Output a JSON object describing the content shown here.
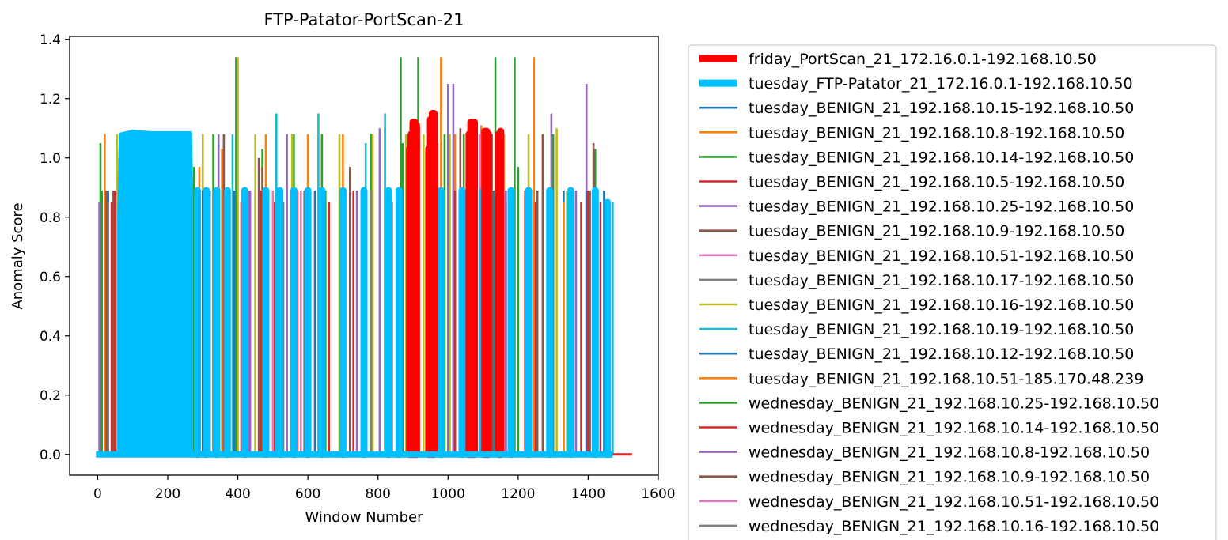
{
  "chart_data": {
    "type": "line",
    "title": "FTP-Patator-PortScan-21",
    "xlabel": "Window Number",
    "ylabel": "Anomaly Score",
    "xlim": [
      -80,
      1600
    ],
    "ylim": [
      -0.07,
      1.41
    ],
    "xticks": [
      0,
      200,
      400,
      600,
      800,
      1000,
      1200,
      1400,
      1600
    ],
    "yticks": [
      0.0,
      0.2,
      0.4,
      0.6,
      0.8,
      1.0,
      1.2,
      1.4
    ],
    "ytick_labels": [
      "0.0",
      "0.2",
      "0.4",
      "0.6",
      "0.8",
      "1.0",
      "1.2",
      "1.4"
    ],
    "grid": false,
    "legend_position": "outside-right",
    "series": [
      {
        "name": "friday_PortScan_21_172.16.0.1-192.168.10.50",
        "color": "#ff0000",
        "width": "thick",
        "spikes": [
          [
            890,
            1.03
          ],
          [
            895,
            1.08
          ],
          [
            900,
            1.12
          ],
          [
            905,
            1.12
          ],
          [
            910,
            1.11
          ],
          [
            945,
            1.03
          ],
          [
            950,
            1.13
          ],
          [
            955,
            1.15
          ],
          [
            960,
            1.15
          ],
          [
            1060,
            1.08
          ],
          [
            1065,
            1.12
          ],
          [
            1070,
            1.12
          ],
          [
            1075,
            1.12
          ],
          [
            1105,
            1.09
          ],
          [
            1110,
            1.09
          ],
          [
            1115,
            1.08
          ],
          [
            1145,
            1.08
          ],
          [
            1150,
            1.09
          ]
        ]
      },
      {
        "name": "tuesday_FTP-Patator_21_172.16.0.1-192.168.10.50",
        "color": "#00bfff",
        "width": "thick",
        "block": [
          [
            60,
            0.8
          ],
          [
            65,
            1.08
          ],
          [
            100,
            1.09
          ],
          [
            150,
            1.085
          ],
          [
            200,
            1.085
          ],
          [
            265,
            1.085
          ],
          [
            268,
            0.89
          ]
        ],
        "spikes": [
          [
            285,
            0.89
          ],
          [
            310,
            0.89
          ],
          [
            340,
            0.89
          ],
          [
            370,
            0.89
          ],
          [
            420,
            0.89
          ],
          [
            480,
            0.89
          ],
          [
            520,
            0.89
          ],
          [
            560,
            0.89
          ],
          [
            600,
            0.89
          ],
          [
            640,
            0.89
          ],
          [
            700,
            0.89
          ],
          [
            760,
            0.89
          ],
          [
            830,
            0.89
          ],
          [
            860,
            0.89
          ],
          [
            980,
            0.89
          ],
          [
            1040,
            0.89
          ],
          [
            1100,
            0.89
          ],
          [
            1180,
            0.89
          ],
          [
            1230,
            0.89
          ],
          [
            1290,
            0.89
          ],
          [
            1350,
            0.89
          ],
          [
            1420,
            0.89
          ],
          [
            1455,
            0.85
          ]
        ]
      },
      {
        "name": "tuesday_BENIGN_21_192.168.10.15-192.168.10.50",
        "color": "#1f77b4",
        "width": "thin",
        "spikes": [
          [
            30,
            0.89
          ],
          [
            250,
            0.89
          ],
          [
            320,
            0.89
          ],
          [
            450,
            0.89
          ],
          [
            620,
            0.89
          ],
          [
            760,
            0.89
          ],
          [
            940,
            0.89
          ],
          [
            1130,
            0.89
          ],
          [
            1330,
            0.89
          ],
          [
            1445,
            0.89
          ]
        ]
      },
      {
        "name": "tuesday_BENIGN_21_192.168.10.8-192.168.10.50",
        "color": "#ff7f0e",
        "width": "thin",
        "spikes": [
          [
            20,
            1.08
          ],
          [
            290,
            0.97
          ],
          [
            355,
            1.03
          ],
          [
            480,
            1.08
          ],
          [
            580,
            0.89
          ],
          [
            700,
            1.08
          ],
          [
            820,
            1.1
          ],
          [
            1020,
            1.08
          ],
          [
            1095,
            1.11
          ],
          [
            1140,
            1.08
          ],
          [
            1245,
            1.34
          ],
          [
            1300,
            1.08
          ],
          [
            1380,
            0.85
          ]
        ]
      },
      {
        "name": "tuesday_BENIGN_21_192.168.10.14-192.168.10.50",
        "color": "#2ca02c",
        "width": "thin",
        "spikes": [
          [
            8,
            1.05
          ],
          [
            55,
            1.03
          ],
          [
            275,
            0.97
          ],
          [
            395,
            1.34
          ],
          [
            470,
            1.03
          ],
          [
            560,
            1.08
          ],
          [
            640,
            1.08
          ],
          [
            780,
            1.08
          ],
          [
            865,
            1.34
          ],
          [
            915,
            1.34
          ],
          [
            990,
            1.08
          ],
          [
            1045,
            1.08
          ],
          [
            1135,
            1.34
          ],
          [
            1190,
            1.34
          ],
          [
            1300,
            1.08
          ],
          [
            1420,
            1.03
          ]
        ]
      },
      {
        "name": "tuesday_BENIGN_21_192.168.10.5-192.168.10.50",
        "color": "#d62728",
        "width": "thin",
        "spikes": [
          [
            40,
            0.85
          ],
          [
            300,
            0.85
          ],
          [
            410,
            0.85
          ],
          [
            505,
            0.85
          ],
          [
            660,
            0.85
          ],
          [
            760,
            0.85
          ],
          [
            870,
            0.85
          ],
          [
            980,
            0.85
          ],
          [
            1110,
            0.85
          ],
          [
            1250,
            0.85
          ],
          [
            1380,
            0.85
          ],
          [
            1435,
            0.85
          ]
        ]
      },
      {
        "name": "tuesday_BENIGN_21_192.168.10.25-192.168.10.50",
        "color": "#9467bd",
        "width": "thin",
        "spikes": [
          [
            345,
            1.08
          ],
          [
            435,
            0.89
          ],
          [
            540,
            1.08
          ],
          [
            700,
            0.89
          ],
          [
            805,
            1.1
          ],
          [
            1000,
            1.25
          ],
          [
            1015,
            1.25
          ],
          [
            1155,
            1.08
          ],
          [
            1295,
            1.15
          ],
          [
            1395,
            1.25
          ]
        ]
      },
      {
        "name": "tuesday_BENIGN_21_192.168.10.9-192.168.10.50",
        "color": "#8c564b",
        "width": "thin",
        "spikes": [
          [
            45,
            0.89
          ],
          [
            360,
            1.08
          ],
          [
            470,
            0.97
          ],
          [
            600,
            0.89
          ],
          [
            720,
            0.97
          ],
          [
            885,
            1.08
          ],
          [
            1035,
            1.1
          ],
          [
            1125,
            1.08
          ],
          [
            1270,
            1.08
          ],
          [
            1415,
            1.05
          ]
        ]
      },
      {
        "name": "tuesday_BENIGN_21_192.168.10.51-192.168.10.50",
        "color": "#e377c2",
        "width": "thin",
        "spikes": [
          [
            580,
            0.89
          ],
          [
            970,
            1.05
          ],
          [
            1090,
            1.08
          ]
        ]
      },
      {
        "name": "tuesday_BENIGN_21_192.168.10.17-192.168.10.50",
        "color": "#7f7f7f",
        "width": "thin",
        "spikes": [
          [
            30,
            0.85
          ],
          [
            240,
            0.85
          ],
          [
            530,
            0.85
          ],
          [
            840,
            0.85
          ],
          [
            1165,
            0.85
          ]
        ]
      },
      {
        "name": "tuesday_BENIGN_21_192.168.10.16-192.168.10.50",
        "color": "#bcbd22",
        "width": "thin",
        "spikes": [
          [
            55,
            1.08
          ],
          [
            300,
            1.08
          ],
          [
            400,
            1.34
          ],
          [
            450,
            1.08
          ],
          [
            555,
            1.08
          ],
          [
            690,
            1.08
          ],
          [
            785,
            1.08
          ],
          [
            880,
            1.08
          ],
          [
            930,
            1.08
          ],
          [
            1005,
            1.08
          ],
          [
            1160,
            1.08
          ],
          [
            1230,
            1.08
          ],
          [
            1310,
            1.1
          ]
        ]
      },
      {
        "name": "tuesday_BENIGN_21_192.168.10.19-192.168.10.50",
        "color": "#17becf",
        "width": "thin",
        "spikes": [
          [
            385,
            1.08
          ],
          [
            510,
            1.15
          ],
          [
            630,
            1.15
          ],
          [
            765,
            1.05
          ],
          [
            820,
            1.15
          ],
          [
            1110,
            0.89
          ],
          [
            1470,
            0.85
          ]
        ]
      },
      {
        "name": "tuesday_BENIGN_21_192.168.10.12-192.168.10.50",
        "color": "#1f77b4",
        "width": "thin",
        "spikes": [
          [
            140,
            0.89
          ],
          [
            390,
            0.89
          ],
          [
            640,
            0.89
          ],
          [
            890,
            0.89
          ],
          [
            1180,
            0.89
          ],
          [
            1395,
            0.89
          ]
        ]
      },
      {
        "name": "tuesday_BENIGN_21_192.168.10.51-185.170.48.239",
        "color": "#ff7f0e",
        "width": "thin",
        "spikes": [
          [
            260,
            0.89
          ],
          [
            600,
            1.08
          ],
          [
            980,
            1.34
          ],
          [
            1080,
            1.0
          ],
          [
            1330,
            0.85
          ]
        ]
      },
      {
        "name": "wednesday_BENIGN_21_192.168.10.25-192.168.10.50",
        "color": "#2ca02c",
        "width": "thin",
        "spikes": [
          [
            12,
            0.89
          ],
          [
            260,
            0.97
          ],
          [
            330,
            1.08
          ],
          [
            430,
            0.89
          ],
          [
            520,
            0.89
          ],
          [
            650,
            0.89
          ],
          [
            755,
            0.89
          ],
          [
            870,
            1.05
          ],
          [
            1055,
            1.08
          ],
          [
            1200,
            0.97
          ],
          [
            1340,
            0.89
          ]
        ]
      },
      {
        "name": "wednesday_BENIGN_21_192.168.10.14-192.168.10.50",
        "color": "#d62728",
        "width": "thin",
        "spikes": [
          [
            50,
            0.89
          ],
          [
            300,
            0.89
          ],
          [
            465,
            0.89
          ],
          [
            570,
            0.89
          ],
          [
            730,
            0.89
          ],
          [
            900,
            0.89
          ],
          [
            1020,
            0.89
          ],
          [
            1220,
            0.89
          ],
          [
            1400,
            0.89
          ]
        ]
      },
      {
        "name": "wednesday_BENIGN_21_192.168.10.8-192.168.10.50",
        "color": "#9467bd",
        "width": "thin",
        "spikes": [
          [
            5,
            0.85
          ],
          [
            280,
            0.89
          ],
          [
            430,
            0.89
          ],
          [
            560,
            0.89
          ],
          [
            740,
            0.89
          ],
          [
            915,
            0.89
          ],
          [
            1015,
            0.89
          ],
          [
            1165,
            0.89
          ],
          [
            1365,
            0.89
          ]
        ]
      },
      {
        "name": "wednesday_BENIGN_21_192.168.10.9-192.168.10.50",
        "color": "#8c564b",
        "width": "thin",
        "spikes": [
          [
            25,
            0.89
          ],
          [
            310,
            0.89
          ],
          [
            460,
            1.0
          ],
          [
            590,
            0.89
          ],
          [
            760,
            0.89
          ],
          [
            940,
            0.89
          ],
          [
            1100,
            0.89
          ],
          [
            1255,
            0.89
          ],
          [
            1405,
            0.89
          ]
        ]
      },
      {
        "name": "wednesday_BENIGN_21_192.168.10.51-192.168.10.50",
        "color": "#e377c2",
        "width": "thin",
        "spikes": [
          [
            500,
            0.89
          ],
          [
            975,
            0.89
          ]
        ]
      },
      {
        "name": "wednesday_BENIGN_21_192.168.10.16-192.168.10.50",
        "color": "#7f7f7f",
        "width": "thin",
        "spikes": [
          [
            330,
            0.89
          ],
          [
            780,
            0.89
          ],
          [
            1050,
            0.89
          ]
        ]
      }
    ],
    "baseline_tail": {
      "color": "#d62728",
      "x": [
        1470,
        1525
      ],
      "y": 0.0
    }
  }
}
